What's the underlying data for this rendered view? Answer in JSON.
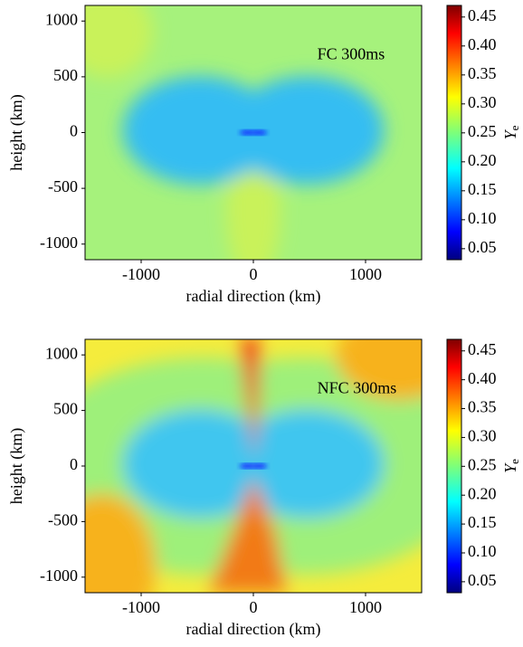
{
  "chart_data": [
    {
      "type": "heatmap",
      "annotation": "FC 300ms",
      "xlabel": "radial direction (km)",
      "ylabel": "height (km)",
      "xlim": [
        -1500,
        1500
      ],
      "ylim": [
        -1140,
        1140
      ],
      "xticks": [
        -1000,
        0,
        1000
      ],
      "yticks": [
        -1000,
        -500,
        0,
        500,
        1000
      ],
      "colorbar": {
        "label": {
          "symbol": "Y",
          "subscript": "e"
        },
        "colormap": "jet",
        "clim": [
          0.031,
          0.47
        ],
        "ticks": [
          0.05,
          {
            "value": 0.1,
            "label": "0.10"
          },
          0.15,
          {
            "value": 0.2,
            "label": "0.20"
          },
          0.25,
          {
            "value": 0.3,
            "label": "0.30"
          },
          0.35,
          {
            "value": 0.4,
            "label": "0.40"
          },
          0.45
        ]
      }
    },
    {
      "type": "heatmap",
      "annotation": "NFC 300ms",
      "xlabel": "radial direction (km)",
      "ylabel": "height (km)",
      "xlim": [
        -1500,
        1500
      ],
      "ylim": [
        -1140,
        1140
      ],
      "xticks": [
        -1000,
        0,
        1000
      ],
      "yticks": [
        -1000,
        -500,
        0,
        500,
        1000
      ],
      "colorbar": {
        "label": {
          "symbol": "Y",
          "subscript": "e"
        },
        "colormap": "jet",
        "clim": [
          0.031,
          0.47
        ],
        "ticks": [
          0.05,
          {
            "value": 0.1,
            "label": "0.10"
          },
          0.15,
          {
            "value": 0.2,
            "label": "0.20"
          },
          0.25,
          {
            "value": 0.3,
            "label": "0.30"
          },
          0.35,
          {
            "value": 0.4,
            "label": "0.40"
          },
          0.45
        ]
      }
    }
  ]
}
